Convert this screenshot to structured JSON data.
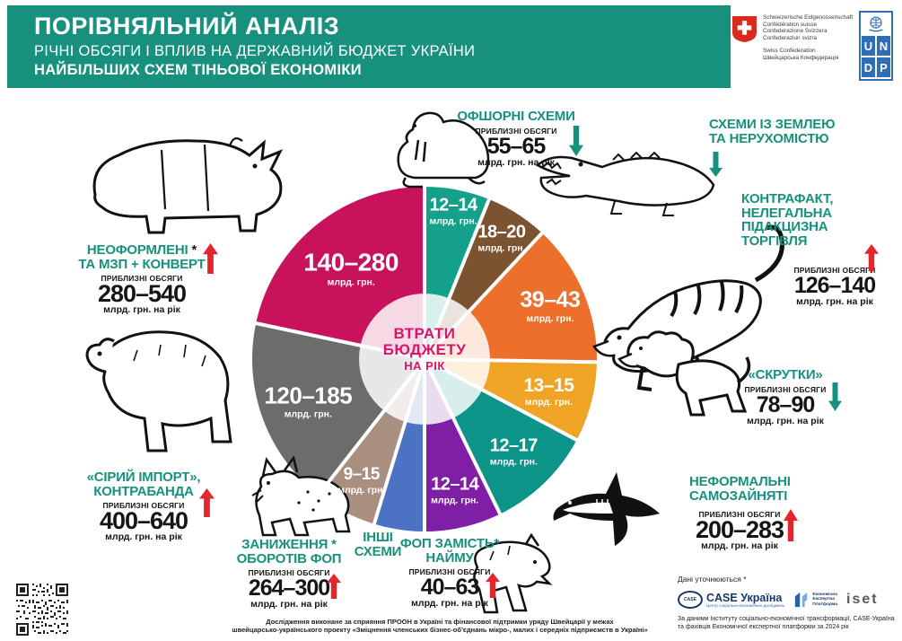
{
  "header": {
    "title": "ПОРІВНЯЛЬНИЙ АНАЛІЗ",
    "subtitle1": "РІЧНІ ОБСЯГИ І ВПЛИВ НА ДЕРЖАВНИЙ БЮДЖЕТ УКРАЇНИ",
    "subtitle2": "НАЙБІЛЬШИХ СХЕМ ТІНЬОВОЇ ЕКОНОМІКИ",
    "bg_color": "#17917E"
  },
  "swiss": {
    "line1": "Schweizerische Eidgenossenschaft",
    "line2": "Confédération suisse",
    "line3": "Confederazione Svizzera",
    "line4": "Confederaziun svizra",
    "line5": "Swiss Confederation",
    "line6": "Швейцарська Конфедерація"
  },
  "undp": {
    "u": "U",
    "n": "N",
    "d": "D",
    "p": "P"
  },
  "chart_data": {
    "type": "pie",
    "title": "ВТРАТИ БЮДЖЕТУ НА РІК",
    "title_lines": [
      "ВТРАТИ",
      "БЮДЖЕТУ",
      "НА РІК"
    ],
    "unit_short": "млрд. грн.",
    "legend_position": "none",
    "segments": [
      {
        "scheme": "Офшорні схеми",
        "display": "12–14",
        "min": 12,
        "max": 14,
        "color": "#14A08A",
        "angle_start": 0,
        "angle_end": 22
      },
      {
        "scheme": "Схеми із землею та нерухомістю",
        "display": "18–20",
        "min": 18,
        "max": 20,
        "color": "#7B5331",
        "angle_start": 22,
        "angle_end": 43
      },
      {
        "scheme": "Контрафакт, нелегальна підакцизна торгівля",
        "display": "39–43",
        "min": 39,
        "max": 43,
        "color": "#EC6F2C",
        "angle_start": 43,
        "angle_end": 91
      },
      {
        "scheme": "«Скрутки»",
        "display": "13–15",
        "min": 13,
        "max": 15,
        "color": "#EFA426",
        "angle_start": 91,
        "angle_end": 118
      },
      {
        "scheme": "Неформальні самозайняті",
        "display": "12–17",
        "min": 12,
        "max": 17,
        "color": "#0D9488",
        "angle_start": 118,
        "angle_end": 154
      },
      {
        "scheme": "ФОП замість найму",
        "display": "12–14",
        "min": 12,
        "max": 14,
        "color": "#7F1FA6",
        "angle_start": 154,
        "angle_end": 180
      },
      {
        "scheme": "Інші схеми",
        "display": "",
        "color": "#4C72C4",
        "angle_start": 180,
        "angle_end": 197
      },
      {
        "scheme": "Заниження оборотів ФОП",
        "display": "9–15",
        "min": 9,
        "max": 15,
        "color": "#A98F80",
        "angle_start": 197,
        "angle_end": 218
      },
      {
        "scheme": "«Сірий імпорт», контрабанда",
        "display": "120–185",
        "min": 120,
        "max": 185,
        "color": "#6C6C6C",
        "angle_start": 218,
        "angle_end": 282
      },
      {
        "scheme": "Неоформлені та МЗП + конверт",
        "display": "140–280",
        "min": 140,
        "max": 280,
        "color": "#C8135C",
        "angle_start": 282,
        "angle_end": 360
      }
    ]
  },
  "callouts": {
    "offshore": {
      "title": "ОФШОРНІ СХЕМИ",
      "approx": "ПРИБЛИЗНІ ОБСЯГИ",
      "value": "55–65",
      "value_min": 55,
      "value_max": 65,
      "unit": "млрд. грн. на рік",
      "trend": "down"
    },
    "land": {
      "title1": "СХЕМИ ІЗ ЗЕМЛЕЮ",
      "title2": "ТА НЕРУХОМІСТЮ",
      "trend": "down"
    },
    "counterfeit": {
      "title1": "КОНТРАФАКТ,",
      "title2": "НЕЛЕГАЛЬНА",
      "title3": "ПІДАКЦИЗНА ТОРГІВЛЯ",
      "approx": "ПРИБЛИЗНІ ОБСЯГИ",
      "value": "126–140",
      "value_min": 126,
      "value_max": 140,
      "unit": "млрд. грн. на рік",
      "trend": "up"
    },
    "skrutky": {
      "title": "«СКРУТКИ»",
      "approx": "ПРИБЛИЗНІ ОБСЯГИ",
      "value": "78–90",
      "value_min": 78,
      "value_max": 90,
      "unit": "млрд. грн. на рік",
      "trend": "down"
    },
    "informal": {
      "title1": "НЕФОРМАЛЬНІ",
      "title2": "САМОЗАЙНЯТІ",
      "approx": "ПРИБЛИЗНІ ОБСЯГИ",
      "value": "200–283",
      "value_min": 200,
      "value_max": 283,
      "unit": "млрд. грн. на рік",
      "trend": "up"
    },
    "wages": {
      "title1": "НЕОФОРМЛЕНІ",
      "star": " *",
      "title2": "ТА МЗП + КОНВЕРТ",
      "approx": "ПРИБЛИЗНІ ОБСЯГИ",
      "value": "280–540",
      "value_min": 280,
      "value_max": 540,
      "unit": "млрд. грн. на рік",
      "trend": "up"
    },
    "import": {
      "title1": "«СІРИЙ ІМПОРТ»,",
      "title2": "КОНТРАБАНДА",
      "approx": "ПРИБЛИЗНІ ОБСЯГИ",
      "value": "400–640",
      "value_min": 400,
      "value_max": 640,
      "unit": "млрд. грн. на рік",
      "trend": "up"
    },
    "fop_turnover": {
      "title1": "ЗАНИЖЕННЯ *",
      "title2": "ОБОРОТІВ ФОП",
      "approx": "ПРИБЛИЗНІ ОБСЯГИ",
      "value": "264–300",
      "value_min": 264,
      "value_max": 300,
      "unit": "млрд. грн. на рік",
      "trend": "up"
    },
    "other": {
      "title1": "ІНШІ",
      "title2": "СХЕМИ"
    },
    "fop_hiring": {
      "title1": "ФОП ЗАМІСТЬ*",
      "title2": "НАЙМУ",
      "approx": "ПРИБЛИЗНІ ОБСЯГИ",
      "value": "40–63",
      "value_min": 40,
      "value_max": 63,
      "unit": "млрд. грн. на рік",
      "trend": "up"
    }
  },
  "footer": {
    "footnote_line1": "Дослідження виконане за сприяння ПРООН в Україні та фінансової підтримки уряду Швейцарії у межах",
    "footnote_line2": "швейцарсько-українського проекту «Зміцнення членських бізнес-об'єднань мікро-, малих і середніх підприємств в Україні»",
    "data_note": "Дані уточнюються *",
    "source_line1": "За даними Інституту соціально-економічної трансформації, CASE-Україна",
    "source_line2": "та фахівців Економічної експертної платформи за 2024 рік"
  },
  "partners": {
    "case_abbr": "CASE",
    "case_name": "CASE Україна",
    "case_tagline": "Центр соціально-економічних досліджень",
    "eep_line1": "Економічна",
    "eep_line2": "Експертна",
    "eep_line3": "Платформа",
    "iset": "iset"
  },
  "colors": {
    "teal": "#17917E",
    "red_arrow": "#E3262B",
    "center_text": "#D9156B"
  }
}
